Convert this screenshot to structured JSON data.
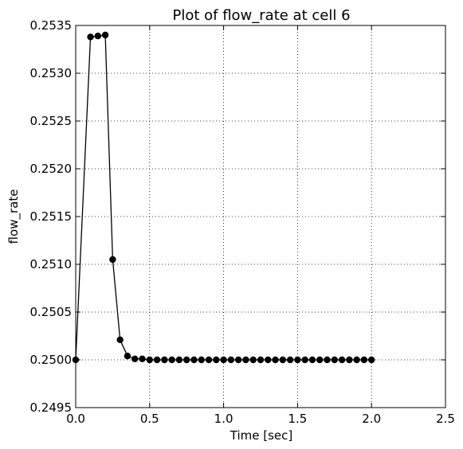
{
  "chart_data": {
    "type": "line",
    "title": "Plot of flow_rate at cell 6",
    "xlabel": "Time [sec]",
    "ylabel": "flow_rate",
    "xlim": [
      0.0,
      2.5
    ],
    "ylim": [
      0.2495,
      0.2535
    ],
    "xticks": [
      0.0,
      0.5,
      1.0,
      1.5,
      2.0,
      2.5
    ],
    "xtick_labels": [
      "0.0",
      "0.5",
      "1.0",
      "1.5",
      "2.0",
      "2.5"
    ],
    "yticks": [
      0.2495,
      0.25,
      0.2505,
      0.251,
      0.2515,
      0.252,
      0.2525,
      0.253,
      0.2535
    ],
    "ytick_labels": [
      "0.2495",
      "0.2500",
      "0.2505",
      "0.2510",
      "0.2515",
      "0.2520",
      "0.2525",
      "0.2530",
      "0.2535"
    ],
    "grid": true,
    "legend": false,
    "series": [
      {
        "color": "#000000",
        "marker": "circle",
        "x": [
          0.0,
          0.1,
          0.15,
          0.2,
          0.25,
          0.3,
          0.35,
          0.4,
          0.45,
          0.5,
          0.55,
          0.6,
          0.65,
          0.7,
          0.75,
          0.8,
          0.85,
          0.9,
          0.95,
          1.0,
          1.05,
          1.1,
          1.15,
          1.2,
          1.25,
          1.3,
          1.35,
          1.4,
          1.45,
          1.5,
          1.55,
          1.6,
          1.65,
          1.7,
          1.75,
          1.8,
          1.85,
          1.9,
          1.95,
          2.0
        ],
        "y": [
          0.25,
          0.25338,
          0.25339,
          0.2534,
          0.25105,
          0.25021,
          0.25004,
          0.25001,
          0.25001,
          0.25,
          0.25,
          0.25,
          0.25,
          0.25,
          0.25,
          0.25,
          0.25,
          0.25,
          0.25,
          0.25,
          0.25,
          0.25,
          0.25,
          0.25,
          0.25,
          0.25,
          0.25,
          0.25,
          0.25,
          0.25,
          0.25,
          0.25,
          0.25,
          0.25,
          0.25,
          0.25,
          0.25,
          0.25,
          0.25,
          0.25
        ]
      }
    ]
  }
}
